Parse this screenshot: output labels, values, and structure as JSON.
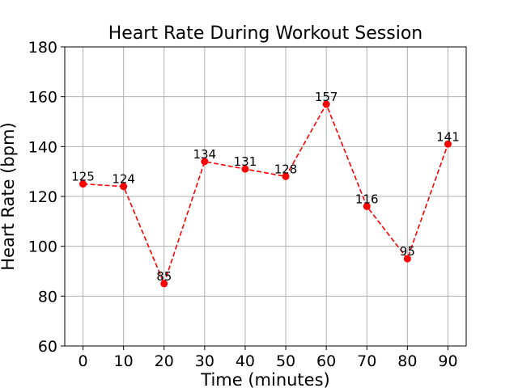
{
  "chart_data": {
    "type": "line",
    "title": "Heart Rate During Workout Session",
    "xlabel": "Time (minutes)",
    "ylabel": "Heart Rate (bpm)",
    "x": [
      0,
      10,
      20,
      30,
      40,
      50,
      60,
      70,
      80,
      90
    ],
    "series": [
      {
        "values": [
          125,
          124,
          85,
          134,
          131,
          128,
          157,
          116,
          95,
          141
        ],
        "color": "#ff0000",
        "line_style": "dashed",
        "marker": "circle"
      }
    ],
    "data_labels": [
      "125",
      "124",
      "85",
      "134",
      "131",
      "128",
      "157",
      "116",
      "95",
      "141"
    ],
    "xticks": [
      0,
      10,
      20,
      30,
      40,
      50,
      60,
      70,
      80,
      90
    ],
    "yticks": [
      60,
      80,
      100,
      120,
      140,
      160,
      180
    ],
    "xlim": [
      -4.5,
      94.5
    ],
    "ylim": [
      60,
      180
    ],
    "grid": true,
    "legend": "none"
  }
}
